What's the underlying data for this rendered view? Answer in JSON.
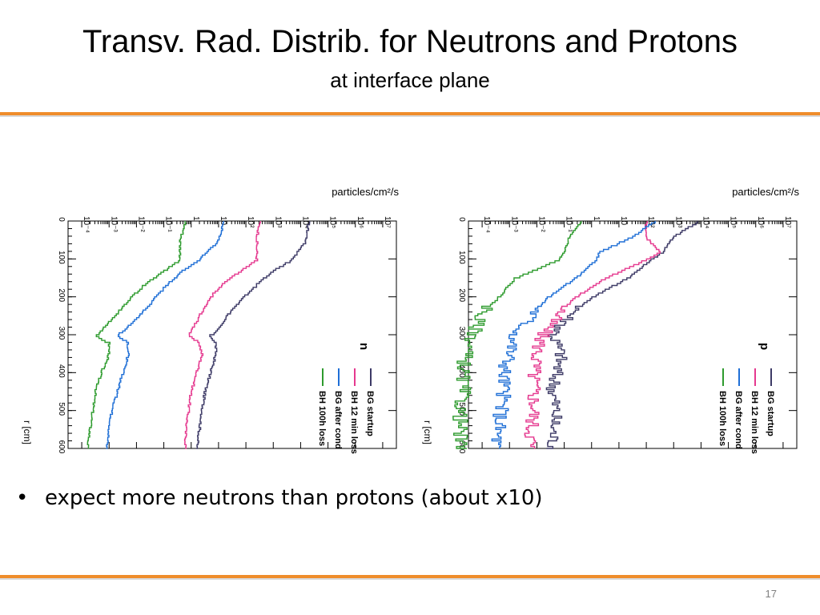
{
  "slide": {
    "title": "Transv. Rad. Distrib. for Neutrons and Protons",
    "subtitle": "at interface plane",
    "bullet_marker": "•",
    "bullet": "expect more neutrons than protons (about x10)",
    "page_number": "17"
  },
  "colors": {
    "accent_rule": "#ef8d2b",
    "BG startup": "#3d3a66",
    "BG after cond": "#1f6fd6",
    "BH 12 min loss": "#e5398f",
    "BH 100h loss": "#2e9b2e"
  },
  "chart_data": [
    {
      "type": "line",
      "orientation": "rotated 90 degrees clockwise (r runs top to bottom, flux runs left to right)",
      "panel_label": "n",
      "xlabel": "r [cm]",
      "ylabel": "particles/cm²/s",
      "xlim": [
        0,
        600
      ],
      "ylog": true,
      "ylim_exp": [
        -4.5,
        7.5
      ],
      "x_ticks": [
        "0",
        "100",
        "200",
        "300",
        "400",
        "500",
        "600"
      ],
      "y_ticks": [
        "10⁻⁴",
        "10⁻³",
        "10⁻²",
        "10⁻¹",
        "1",
        "10",
        "10²",
        "10³",
        "10⁴",
        "10⁵",
        "10⁶",
        "10⁷"
      ],
      "grid": false,
      "legend_position": "lower-right",
      "x": [
        0,
        50,
        100,
        130,
        160,
        200,
        250,
        290,
        300,
        320,
        350,
        400,
        450,
        500,
        550,
        600
      ],
      "series": [
        {
          "name": "BG startup",
          "log10_values": [
            4.3,
            4.2,
            3.7,
            3.0,
            2.5,
            1.9,
            1.3,
            0.9,
            0.7,
            0.9,
            0.9,
            0.7,
            0.5,
            0.4,
            0.3,
            0.2
          ]
        },
        {
          "name": "BH 12 min loss",
          "log10_values": [
            2.5,
            2.4,
            2.4,
            1.8,
            1.2,
            0.7,
            0.3,
            0.0,
            -0.1,
            0.3,
            0.4,
            0.2,
            0.0,
            -0.1,
            -0.2,
            -0.2
          ]
        },
        {
          "name": "BG after cond",
          "log10_values": [
            1.2,
            1.0,
            0.3,
            -0.3,
            -0.8,
            -1.3,
            -1.9,
            -2.5,
            -2.7,
            -2.3,
            -2.3,
            -2.5,
            -2.7,
            -2.9,
            -3.0,
            -3.1
          ]
        },
        {
          "name": "BH 100h loss",
          "log10_values": [
            -0.2,
            -0.4,
            -0.4,
            -1.0,
            -1.6,
            -2.2,
            -2.8,
            -3.3,
            -3.5,
            -3.0,
            -3.0,
            -3.3,
            -3.5,
            -3.6,
            -3.7,
            -3.8
          ]
        }
      ]
    },
    {
      "type": "line",
      "orientation": "rotated 90 degrees clockwise (r runs top to bottom, flux runs left to right)",
      "panel_label": "p",
      "xlabel": "r [cm]",
      "ylabel": "particles/cm²/s",
      "xlim": [
        0,
        600
      ],
      "ylog": true,
      "ylim_exp": [
        -4.5,
        7.5
      ],
      "x_ticks": [
        "0",
        "100",
        "200",
        "300",
        "400",
        "500",
        "600"
      ],
      "y_ticks": [
        "10⁻⁴",
        "10⁻³",
        "10⁻²",
        "10⁻¹",
        "1",
        "10",
        "10²",
        "10³",
        "10⁴",
        "10⁵",
        "10⁶",
        "10⁷"
      ],
      "grid": false,
      "legend_position": "lower-right",
      "x": [
        0,
        40,
        80,
        100,
        150,
        200,
        250,
        300,
        350,
        400,
        450,
        500,
        550,
        600
      ],
      "series": [
        {
          "name": "BG startup",
          "log10_values": [
            3.9,
            3.0,
            2.6,
            2.2,
            1.3,
            0.0,
            -0.8,
            -1.4,
            -1.1,
            -1.3,
            -1.4,
            -1.3,
            -1.4,
            -1.4
          ]
        },
        {
          "name": "BH 12 min loss",
          "log10_values": [
            2.0,
            2.0,
            2.5,
            2.0,
            0.5,
            -0.6,
            -1.3,
            -1.8,
            -2.0,
            -2.1,
            -2.1,
            -2.1,
            -2.2,
            -2.2
          ]
        },
        {
          "name": "BG after cond",
          "log10_values": [
            2.3,
            1.5,
            0.3,
            0.2,
            -0.6,
            -1.6,
            -2.2,
            -2.8,
            -3.0,
            -3.2,
            -3.2,
            -3.3,
            -3.4,
            -3.5
          ]
        },
        {
          "name": "BH 100h loss",
          "log10_values": [
            -0.4,
            -0.8,
            -1.0,
            -1.2,
            -2.8,
            -3.4,
            -4.1,
            -4.3,
            -4.6,
            -4.7,
            -4.7,
            -4.8,
            -4.8,
            -4.8
          ]
        }
      ]
    }
  ]
}
